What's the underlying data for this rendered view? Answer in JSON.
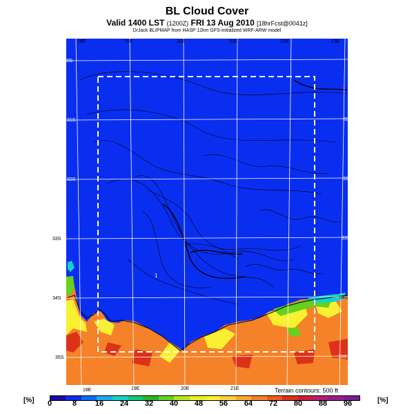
{
  "header": {
    "title": "BL Cloud Cover",
    "valid_line": "Valid 1400 LST",
    "valid_paren": "(1200Z)",
    "valid_date": "FRI 13 Aug 2010",
    "forecast": "[18hrFcst@0041z]",
    "credit": "DrJack BLIPMAP from HASP 12km GFS-initialized WRF-ARW model"
  },
  "map": {
    "lon_labels_top": [
      "18E",
      "19E",
      "20E",
      "21E",
      "22E",
      "23E"
    ],
    "lon_labels_bottom": [
      "18E",
      "19E",
      "20E",
      "21E"
    ],
    "lat_labels_left": [
      "30S",
      "31S",
      "32S",
      "33S",
      "34S",
      "35S"
    ],
    "lat_labels_right": [
      "30S",
      "31S",
      "32S",
      "33S",
      "34S",
      "35S"
    ],
    "point_marker": "1",
    "terrain_note": "Terrain contours: 500 ft",
    "colors": {
      "clear": "#0a2ef0",
      "boundary": "#ffffff",
      "contour": "#000000"
    }
  },
  "colorbar": {
    "unit_left": "[%]",
    "unit_right": "[%]",
    "ticks": [
      "0",
      "8",
      "16",
      "24",
      "32",
      "40",
      "48",
      "56",
      "64",
      "72",
      "80",
      "88",
      "96"
    ],
    "colors": [
      "#1a0aa8",
      "#0a2ef0",
      "#0a6ef5",
      "#1aaaf0",
      "#14d2c8",
      "#10c878",
      "#28b428",
      "#64d21e",
      "#b4e61e",
      "#e6f028",
      "#faf032",
      "#fad23c",
      "#faaa32",
      "#f58228",
      "#f05a1e",
      "#dc3218",
      "#c81e3c",
      "#b41e6e",
      "#961e8c",
      "#781e8c"
    ]
  }
}
